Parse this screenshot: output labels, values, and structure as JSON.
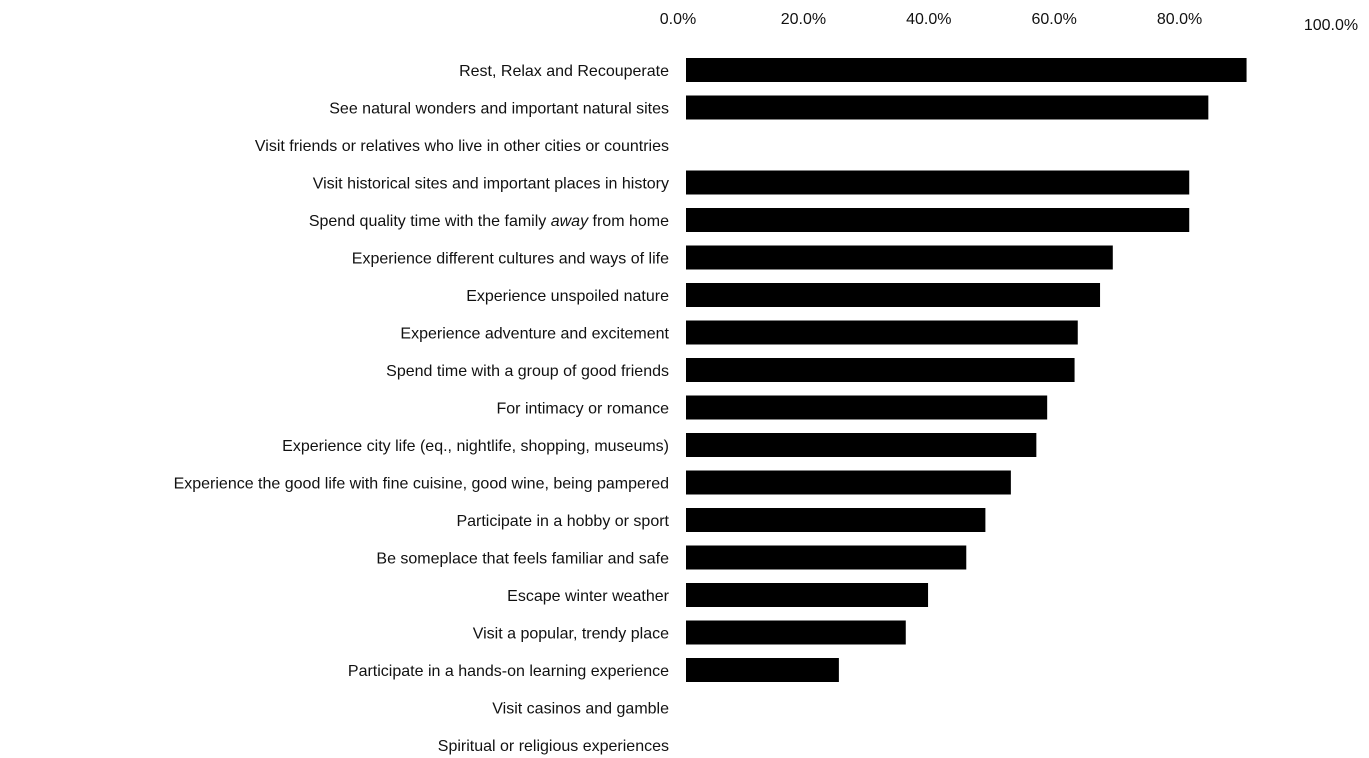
{
  "chart_data": {
    "type": "bar",
    "orientation": "horizontal",
    "bar_color": "#000000",
    "xlim": [
      0,
      100
    ],
    "x_ticks": [
      "0.0%",
      "20.0%",
      "40.0%",
      "60.0%",
      "80.0%",
      "100.0%"
    ],
    "categories": [
      "Rest, Relax and Recouperate",
      "See natural wonders and important natural sites",
      "Visit friends or relatives who live in other cities or countries",
      "Visit historical sites and important places in history",
      "Spend quality time with the family away from home",
      "Experience different cultures and ways of life",
      "Experience unspoiled nature",
      "Experience adventure and excitement",
      "Spend time with a group of good friends",
      "For intimacy or romance",
      "Experience city life (eq., nightlife, shopping, museums)",
      "Experience the good life with fine cuisine, good wine, being pampered",
      "Participate in a hobby or sport",
      "Be someplace that feels familiar and safe",
      "Escape winter weather",
      "Visit a popular, trendy place",
      "Participate in a hands-on learning experience",
      "Visit casinos and gamble",
      "Spiritual or religious experiences"
    ],
    "values": [
      88,
      82,
      null,
      79,
      79,
      67,
      65,
      61.5,
      61,
      56.7,
      55,
      51,
      47,
      44,
      38,
      34.5,
      24,
      null,
      null
    ],
    "emphasis_word": {
      "category_index": 4,
      "word": "away"
    },
    "title": "",
    "xlabel": "",
    "ylabel": "",
    "grid": false,
    "legend": "none"
  }
}
